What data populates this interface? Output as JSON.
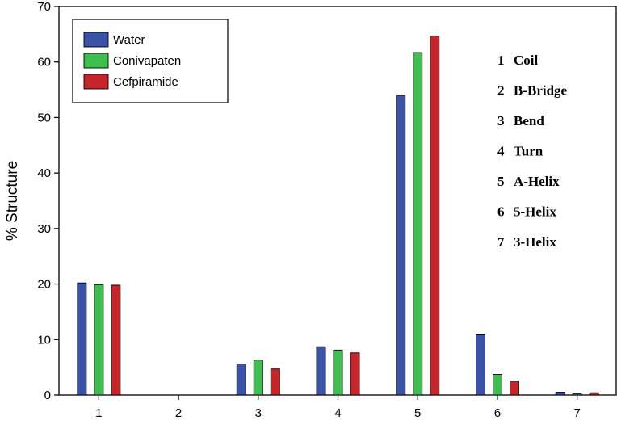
{
  "chart_data": {
    "type": "bar",
    "title": "",
    "xlabel": "",
    "ylabel": "% Structure",
    "categories": [
      "1",
      "2",
      "3",
      "4",
      "5",
      "6",
      "7"
    ],
    "ylim": [
      0,
      70
    ],
    "yticks": [
      "0",
      "10",
      "20",
      "30",
      "40",
      "50",
      "60",
      "70"
    ],
    "ytick_values": [
      0,
      10,
      20,
      30,
      40,
      50,
      60,
      70
    ],
    "series": [
      {
        "name": "Water",
        "color": "#3a52a8",
        "values": [
          20.2,
          0,
          5.6,
          8.7,
          54.0,
          11.0,
          0.5
        ]
      },
      {
        "name": "Conivapaten",
        "color": "#3fbf4f",
        "values": [
          19.9,
          0,
          6.3,
          8.1,
          61.7,
          3.7,
          0.2
        ]
      },
      {
        "name": "Cefpiramide",
        "color": "#c8252b",
        "values": [
          19.8,
          0,
          4.7,
          7.6,
          64.7,
          2.5,
          0.4
        ]
      }
    ],
    "legend_position": "top-left",
    "grid": false,
    "annotations": [
      {
        "num": "1",
        "label": "Coil"
      },
      {
        "num": "2",
        "label": "B-Bridge"
      },
      {
        "num": "3",
        "label": "Bend"
      },
      {
        "num": "4",
        "label": "Turn"
      },
      {
        "num": "5",
        "label": "A-Helix"
      },
      {
        "num": "6",
        "label": "5-Helix"
      },
      {
        "num": "7",
        "label": "3-Helix"
      }
    ]
  }
}
